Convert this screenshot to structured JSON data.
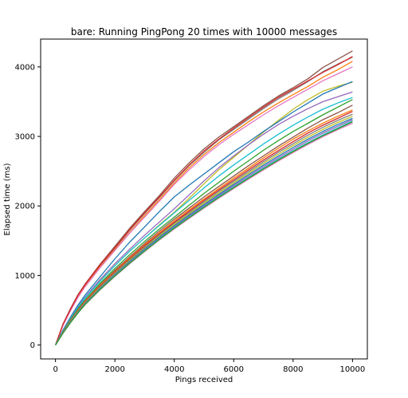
{
  "chart_data": {
    "type": "line",
    "title": "bare: Running PingPong 20 times with 10000 messages",
    "xlabel": "Pings received",
    "ylabel": "Elapsed time (ms)",
    "xlim": [
      -500,
      10500
    ],
    "ylim": [
      -200,
      4400
    ],
    "x_ticks": [
      0,
      2000,
      4000,
      6000,
      8000,
      10000
    ],
    "y_ticks": [
      0,
      1000,
      2000,
      3000,
      4000
    ],
    "grid": false,
    "x": [
      0,
      100,
      250,
      500,
      750,
      1000,
      1500,
      2000,
      2500,
      3000,
      3500,
      4000,
      4500,
      5000,
      5500,
      6000,
      6500,
      7000,
      7500,
      8000,
      8500,
      9000,
      9500,
      10000
    ],
    "series": [
      {
        "color": "#8c564b",
        "values": [
          0,
          120,
          300,
          520,
          720,
          880,
          1160,
          1420,
          1680,
          1920,
          2150,
          2400,
          2620,
          2820,
          2990,
          3140,
          3290,
          3440,
          3580,
          3700,
          3830,
          3990,
          4110,
          4230
        ]
      },
      {
        "color": "#7f7f7f",
        "values": [
          0,
          115,
          290,
          505,
          700,
          860,
          1140,
          1390,
          1650,
          1890,
          2120,
          2360,
          2580,
          2770,
          2950,
          3100,
          3250,
          3400,
          3540,
          3660,
          3790,
          3930,
          4040,
          4140
        ]
      },
      {
        "color": "#ff7f0e",
        "values": [
          0,
          112,
          285,
          495,
          690,
          850,
          1120,
          1370,
          1620,
          1860,
          2090,
          2330,
          2550,
          2740,
          2910,
          3060,
          3210,
          3350,
          3480,
          3600,
          3720,
          3850,
          3960,
          4080
        ]
      },
      {
        "color": "#e377c2",
        "values": [
          0,
          110,
          280,
          490,
          680,
          840,
          1110,
          1360,
          1610,
          1840,
          2070,
          2310,
          2520,
          2710,
          2880,
          3030,
          3170,
          3310,
          3440,
          3560,
          3680,
          3800,
          3900,
          4000
        ]
      },
      {
        "color": "#d62728",
        "values": [
          0,
          118,
          295,
          510,
          710,
          870,
          1150,
          1400,
          1660,
          1900,
          2130,
          2370,
          2590,
          2790,
          2960,
          3120,
          3270,
          3420,
          3560,
          3680,
          3800,
          3920,
          4030,
          4150
        ]
      },
      {
        "color": "#bcbd22",
        "values": [
          0,
          80,
          200,
          380,
          540,
          680,
          920,
          1140,
          1350,
          1540,
          1730,
          1910,
          2110,
          2320,
          2520,
          2700,
          2880,
          3060,
          3230,
          3390,
          3530,
          3650,
          3720,
          3780
        ]
      },
      {
        "color": "#1f77b4",
        "values": [
          0,
          85,
          215,
          400,
          570,
          720,
          980,
          1240,
          1480,
          1700,
          1920,
          2130,
          2300,
          2460,
          2620,
          2780,
          2920,
          3070,
          3210,
          3350,
          3480,
          3610,
          3700,
          3790
        ]
      },
      {
        "color": "#9467bd",
        "values": [
          0,
          82,
          205,
          385,
          545,
          690,
          940,
          1170,
          1380,
          1580,
          1770,
          1960,
          2160,
          2360,
          2550,
          2720,
          2880,
          3030,
          3170,
          3290,
          3400,
          3500,
          3570,
          3640
        ]
      },
      {
        "color": "#17becf",
        "values": [
          0,
          80,
          200,
          375,
          535,
          675,
          915,
          1140,
          1350,
          1540,
          1720,
          1900,
          2080,
          2260,
          2430,
          2590,
          2740,
          2890,
          3030,
          3160,
          3280,
          3390,
          3480,
          3560
        ]
      },
      {
        "color": "#2ca02c",
        "values": [
          0,
          75,
          190,
          360,
          515,
          650,
          885,
          1100,
          1300,
          1490,
          1670,
          1840,
          2010,
          2180,
          2340,
          2500,
          2650,
          2800,
          2940,
          3070,
          3190,
          3310,
          3420,
          3530
        ]
      },
      {
        "color": "#8c564b",
        "values": [
          0,
          74,
          185,
          350,
          500,
          635,
          865,
          1075,
          1270,
          1460,
          1640,
          1810,
          1970,
          2130,
          2280,
          2430,
          2580,
          2720,
          2860,
          2990,
          3120,
          3240,
          3340,
          3450
        ]
      },
      {
        "color": "#ff7f0e",
        "values": [
          0,
          73,
          182,
          345,
          495,
          628,
          855,
          1060,
          1255,
          1440,
          1615,
          1785,
          1945,
          2100,
          2250,
          2400,
          2545,
          2690,
          2830,
          2960,
          3080,
          3190,
          3290,
          3380
        ]
      },
      {
        "color": "#d62728",
        "values": [
          0,
          72,
          180,
          340,
          488,
          620,
          845,
          1050,
          1240,
          1425,
          1600,
          1765,
          1925,
          2080,
          2230,
          2375,
          2520,
          2660,
          2795,
          2925,
          3050,
          3160,
          3260,
          3360
        ]
      },
      {
        "color": "#7f7f7f",
        "values": [
          0,
          71,
          178,
          336,
          482,
          612,
          835,
          1038,
          1228,
          1410,
          1585,
          1750,
          1905,
          2060,
          2210,
          2355,
          2495,
          2635,
          2770,
          2895,
          3020,
          3130,
          3230,
          3320
        ]
      },
      {
        "color": "#bcbd22",
        "values": [
          0,
          70,
          176,
          332,
          476,
          605,
          825,
          1027,
          1215,
          1395,
          1568,
          1732,
          1888,
          2040,
          2188,
          2332,
          2472,
          2610,
          2742,
          2868,
          2990,
          3100,
          3200,
          3290
        ]
      },
      {
        "color": "#1f77b4",
        "values": [
          0,
          69,
          174,
          328,
          470,
          598,
          816,
          1016,
          1203,
          1382,
          1552,
          1715,
          1870,
          2020,
          2167,
          2310,
          2450,
          2585,
          2716,
          2840,
          2960,
          3070,
          3170,
          3260
        ]
      },
      {
        "color": "#9467bd",
        "values": [
          0,
          68,
          172,
          325,
          465,
          592,
          808,
          1006,
          1192,
          1369,
          1538,
          1700,
          1854,
          2003,
          2148,
          2290,
          2428,
          2562,
          2692,
          2815,
          2935,
          3045,
          3145,
          3240
        ]
      },
      {
        "color": "#17becf",
        "values": [
          0,
          67,
          170,
          322,
          461,
          587,
          801,
          998,
          1182,
          1358,
          1526,
          1687,
          1840,
          1988,
          2132,
          2272,
          2408,
          2541,
          2670,
          2792,
          2910,
          3020,
          3120,
          3220
        ]
      },
      {
        "color": "#e377c2",
        "values": [
          0,
          66,
          168,
          318,
          456,
          580,
          792,
          987,
          1170,
          1344,
          1511,
          1670,
          1822,
          1969,
          2112,
          2251,
          2386,
          2518,
          2646,
          2768,
          2886,
          2996,
          3096,
          3190
        ]
      },
      {
        "color": "#2ca02c",
        "values": [
          0,
          67,
          169,
          320,
          459,
          584,
          797,
          993,
          1176,
          1351,
          1519,
          1679,
          1832,
          1980,
          2123,
          2263,
          2399,
          2531,
          2660,
          2782,
          2900,
          3010,
          3110,
          3210
        ]
      }
    ]
  }
}
